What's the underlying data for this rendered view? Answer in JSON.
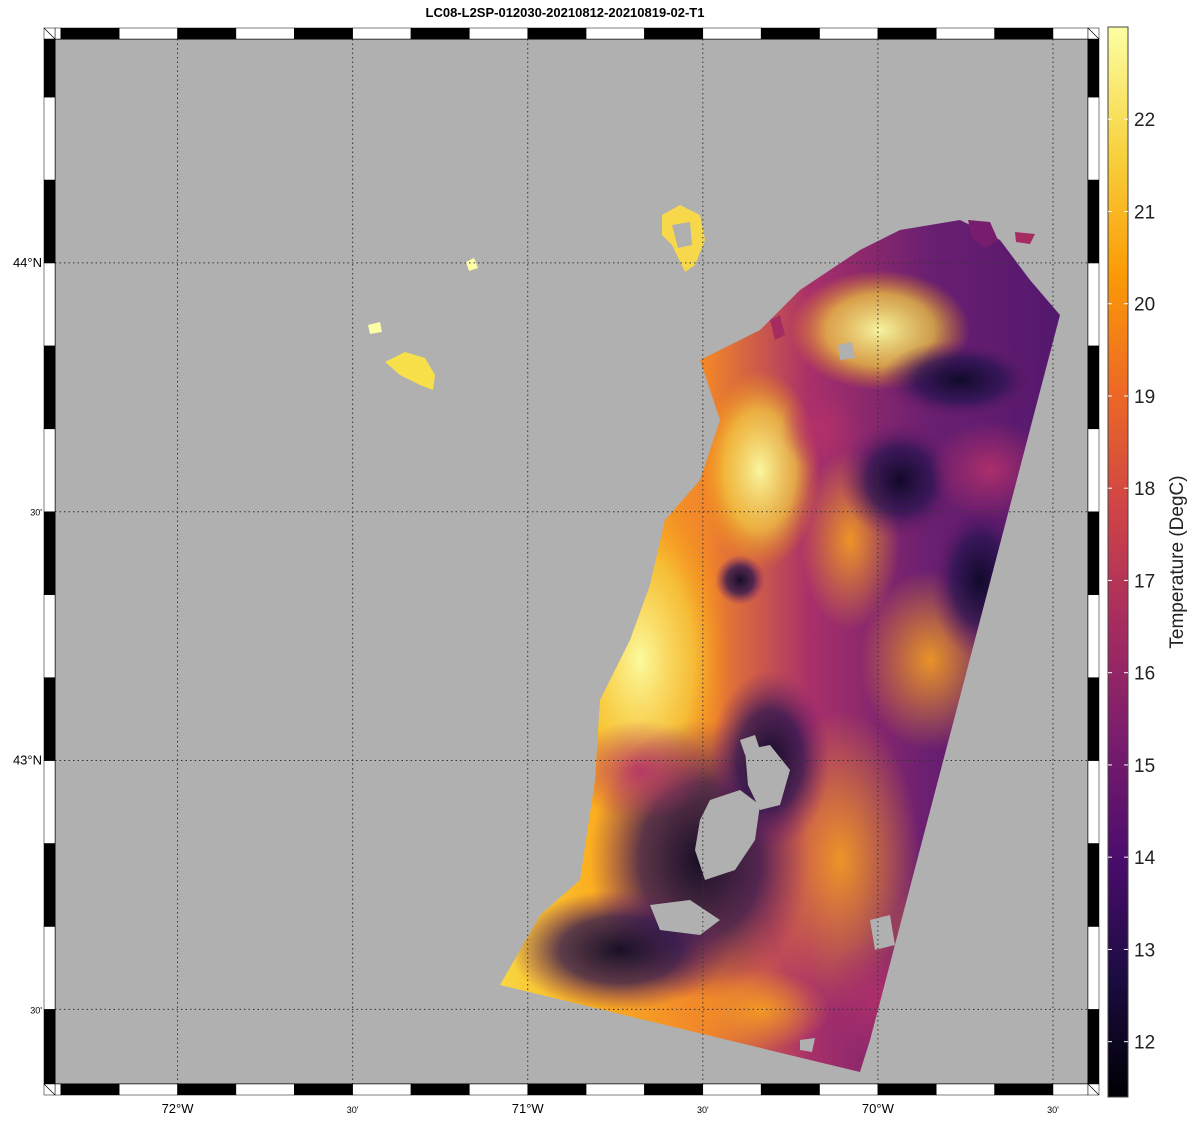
{
  "title": "LC08-L2SP-012030-20210812-20210819-02-T1",
  "map": {
    "lon_range": [
      -72.35,
      -69.4
    ],
    "lat_range": [
      42.35,
      44.45
    ],
    "lon_ticks": [
      {
        "value": -72.0,
        "label": "72°W",
        "major": true
      },
      {
        "value": -71.5,
        "label": "30'",
        "major": false
      },
      {
        "value": -71.0,
        "label": "71°W",
        "major": true
      },
      {
        "value": -70.5,
        "label": "30'",
        "major": false
      },
      {
        "value": -70.0,
        "label": "70°W",
        "major": true
      },
      {
        "value": -69.5,
        "label": "30'",
        "major": false
      }
    ],
    "lat_ticks": [
      {
        "value": 44.0,
        "label": "44°N",
        "major": true
      },
      {
        "value": 43.5,
        "label": "30'",
        "major": false
      },
      {
        "value": 43.0,
        "label": "43°N",
        "major": true
      },
      {
        "value": 42.5,
        "label": "30'",
        "major": false
      }
    ],
    "land_color": "#b0b0b0",
    "grid": true
  },
  "colorbar": {
    "label": "Temperature (DegC)",
    "min": 11.4,
    "max": 23.0,
    "ticks": [
      "12",
      "13",
      "14",
      "15",
      "16",
      "17",
      "18",
      "19",
      "20",
      "21",
      "22"
    ],
    "colormap": "inferno",
    "colors": [
      "#000004",
      "#1b0c41",
      "#4a0c6b",
      "#781c6d",
      "#a52c60",
      "#cf4446",
      "#ed6925",
      "#fb9b06",
      "#f7d13d",
      "#fcffa4"
    ]
  }
}
